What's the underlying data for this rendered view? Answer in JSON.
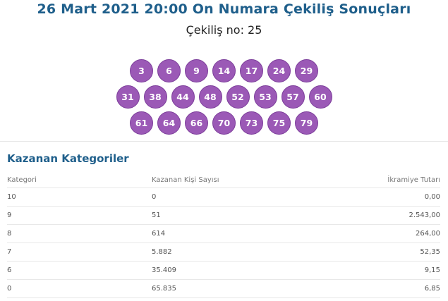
{
  "header": {
    "title": "26 Mart 2021 20:00 On Numara Çekiliş Sonuçları",
    "draw_label": "Çekiliş no: 25"
  },
  "balls": {
    "row1": [
      "3",
      "6",
      "9",
      "14",
      "17",
      "24",
      "29"
    ],
    "row2": [
      "31",
      "38",
      "44",
      "48",
      "52",
      "53",
      "57",
      "60"
    ],
    "row3": [
      "61",
      "64",
      "66",
      "70",
      "73",
      "75",
      "79"
    ]
  },
  "winners": {
    "title": "Kazanan Kategoriler",
    "columns": [
      "Kategori",
      "Kazanan Kişi Sayısı",
      "İkramiye Tutarı"
    ],
    "rows": [
      [
        "10",
        "0",
        "0,00"
      ],
      [
        "9",
        "51",
        "2.543,00"
      ],
      [
        "8",
        "614",
        "264,00"
      ],
      [
        "7",
        "5.882",
        "52,35"
      ],
      [
        "6",
        "35.409",
        "9,15"
      ],
      [
        "0",
        "65.835",
        "6,85"
      ]
    ]
  },
  "colors": {
    "title": "#1f5f8b",
    "ball": "#9b59b6"
  }
}
